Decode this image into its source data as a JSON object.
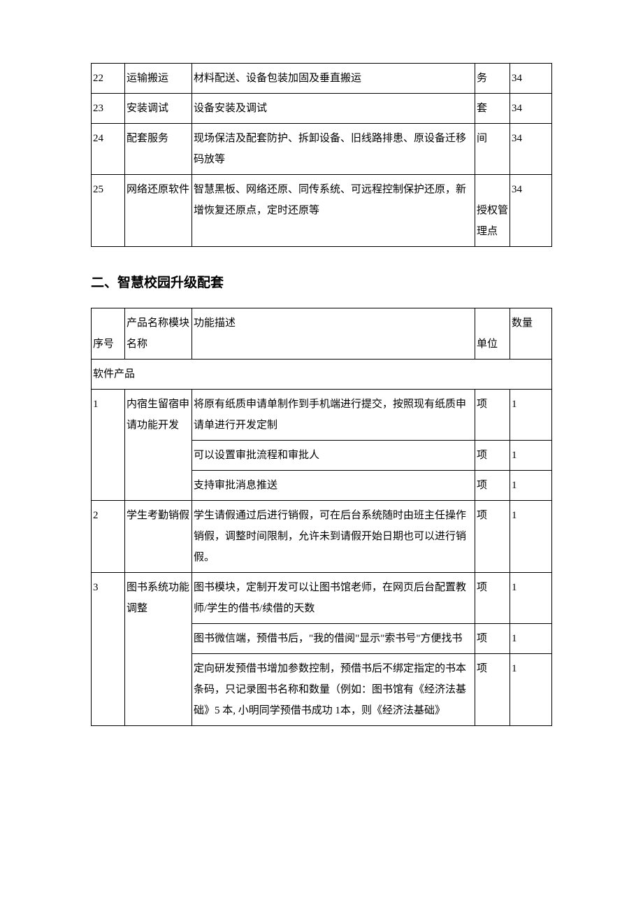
{
  "table1": {
    "columns": [
      "seq",
      "name",
      "desc",
      "unit",
      "qty"
    ],
    "rows": [
      {
        "seq": "22",
        "name": "运输搬运",
        "desc": "材料配送、设备包装加固及垂直搬运",
        "unit": "务",
        "qty": "34"
      },
      {
        "seq": "23",
        "name": "安装调试",
        "desc": "设备安装及调试",
        "unit": "套",
        "qty": "34"
      },
      {
        "seq": "24",
        "name": "配套服务",
        "desc": "现场保洁及配套防护、拆卸设备、旧线路排患、原设备迁移码放等",
        "unit": "间",
        "qty": "34"
      },
      {
        "seq": "25",
        "name": "网络还原软件",
        "desc": "智慧黑板、网络还原、同传系统、可远程控制保护还原，新增恢复还原点，定时还原等",
        "unit": "授权管理点",
        "unit_spaced": true,
        "qty": "34"
      }
    ]
  },
  "section_heading": "二、智慧校园升级配套",
  "table2": {
    "header": {
      "seq": "序号",
      "name": "产品名称模块名称",
      "desc": "功能描述",
      "unit": "单位",
      "qty": "数量"
    },
    "section_label": "软件产品",
    "groups": [
      {
        "seq": "1",
        "name": "内宿生留宿申请功能开发",
        "rows": [
          {
            "desc": "将原有纸质申请单制作到手机端进行提交，按照现有纸质申请单进行开发定制",
            "unit": "项",
            "qty": "1"
          },
          {
            "desc": "可以设置审批流程和审批人",
            "unit": "项",
            "qty": "1"
          },
          {
            "desc": "支持审批消息推送",
            "unit": "项",
            "qty": "1"
          }
        ]
      },
      {
        "seq": "2",
        "name": "学生考勤销假",
        "rows": [
          {
            "desc": "学生请假通过后进行销假，可在后台系统随时由班主任操作销假，调整时间限制，允许未到请假开始日期也可以进行销假。",
            "unit": "项",
            "qty": "1"
          }
        ]
      },
      {
        "seq": "3",
        "name": "图书系统功能调整",
        "rows": [
          {
            "desc": "图书模块，定制开发可以让图书馆老师，在网页后台配置教师/学生的借书/续借的天数",
            "unit": "项",
            "qty": "1"
          },
          {
            "desc": "图书微信端，预借书后，\"我的借阅\"显示\"索书号\"方便找书",
            "unit": "项",
            "qty": "1"
          },
          {
            "desc": "定向研发预借书增加参数控制，预借书后不绑定指定的书本条码，只记录图书名称和数量（例如：图书馆有《经济法基础》5 本, 小明同学预借书成功 1本，则《经济法基础》",
            "unit": "项",
            "qty": "1"
          }
        ]
      }
    ]
  }
}
